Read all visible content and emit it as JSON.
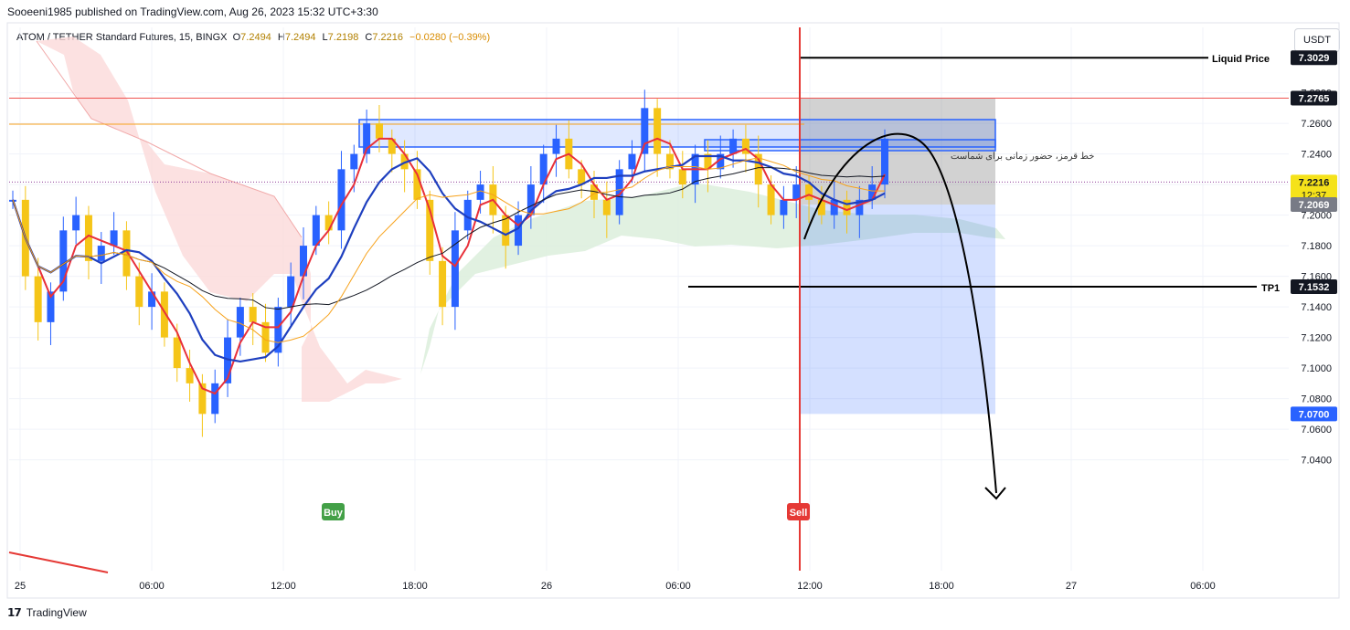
{
  "header": {
    "published": "Sooeeni1985 published on TradingView.com, Aug 26, 2023 15:32 UTC+3:30"
  },
  "legend": {
    "symbol": "ATOM / TETHER Standard Futures, 15, BINGX",
    "o_label": "O",
    "o_value": "7.2494",
    "h_label": "H",
    "h_value": "7.2494",
    "l_label": "L",
    "l_value": "7.2198",
    "c_label": "C",
    "c_value": "7.2216",
    "change": "−0.0280 (−0.39%)"
  },
  "currency_button": "USDT",
  "footer": {
    "brand": "TradingView"
  },
  "colors": {
    "candle_up": "#2962ff",
    "candle_down": "#f5c518",
    "tenkan": "#e8303a",
    "kijun": "#1e3fbf",
    "ma_black": "#131722",
    "ma_orange": "#f7a21b",
    "cloud_red": "#fbdada",
    "cloud_green": "#dcefdc",
    "sell_line": "#e53935",
    "zone_blue": "#2962ff"
  },
  "chart_data": {
    "type": "candlestick",
    "symbol": "ATOM / TETHER",
    "interval": "15",
    "ylim": [
      7.03,
      7.31
    ],
    "y_ticks": [
      "7.2800",
      "7.2600",
      "7.2400",
      "7.2200",
      "7.2000",
      "7.1800",
      "7.1600",
      "7.1400",
      "7.1200",
      "7.1000",
      "7.0800",
      "7.0600",
      "7.0400"
    ],
    "x_ticks": [
      "25",
      "06:00",
      "12:00",
      "18:00",
      "26",
      "06:00",
      "12:00",
      "18:00",
      "27",
      "06:00"
    ],
    "price_tags": [
      {
        "label": "7.3029",
        "value": 7.3029,
        "style": "dark"
      },
      {
        "label": "7.2765",
        "value": 7.2765,
        "style": "dark"
      },
      {
        "label": "7.2216",
        "sub": "12:37",
        "value": 7.2216,
        "style": "yellow"
      },
      {
        "label": "7.2069",
        "value": 7.2069,
        "style": "gray"
      },
      {
        "label": "7.1532",
        "value": 7.1532,
        "style": "dark"
      },
      {
        "label": "7.0700",
        "value": 7.07,
        "style": "blue"
      }
    ],
    "horizontal_levels": [
      {
        "name": "Liquid Price",
        "value": 7.3029
      },
      {
        "name": "TP1",
        "value": 7.1532
      }
    ],
    "resistance_level": 7.2765,
    "orange_level": 7.2595,
    "current_price": 7.2216,
    "signals": [
      {
        "label": "Buy",
        "time": "25 11:00"
      },
      {
        "label": "Sell",
        "time": "26 11:45"
      }
    ],
    "annotation": "خط قرمز، حضور زمانی برای شماست",
    "close_series": [
      7.21,
      7.16,
      7.13,
      7.15,
      7.19,
      7.2,
      7.17,
      7.18,
      7.19,
      7.16,
      7.14,
      7.15,
      7.12,
      7.1,
      7.09,
      7.07,
      7.09,
      7.12,
      7.14,
      7.13,
      7.11,
      7.14,
      7.16,
      7.18,
      7.2,
      7.19,
      7.23,
      7.24,
      7.26,
      7.25,
      7.24,
      7.23,
      7.21,
      7.17,
      7.14,
      7.19,
      7.21,
      7.22,
      7.2,
      7.18,
      7.2,
      7.22,
      7.24,
      7.25,
      7.23,
      7.22,
      7.21,
      7.2,
      7.23,
      7.24,
      7.27,
      7.24,
      7.23,
      7.22,
      7.24,
      7.23,
      7.24,
      7.25,
      7.24,
      7.22,
      7.2,
      7.21,
      7.22,
      7.21,
      7.2,
      7.21,
      7.2,
      7.21,
      7.22,
      7.25
    ]
  }
}
